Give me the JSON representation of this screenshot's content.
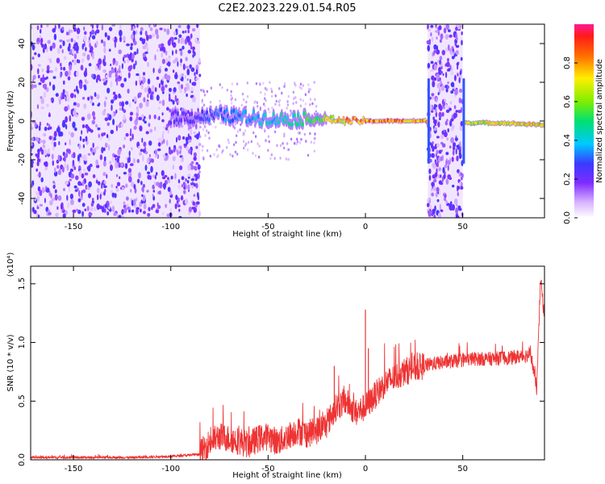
{
  "chart_data": [
    {
      "type": "heatmap",
      "title": "C2E2.2023.229.01.54.R05",
      "xlabel": "Height of straight line (km)",
      "ylabel": "Frequency (Hz)",
      "xlim": [
        -172,
        92
      ],
      "ylim": [
        -50,
        50
      ],
      "xticks": [
        -150,
        -100,
        -50,
        0,
        50
      ],
      "yticks": [
        -40,
        -20,
        0,
        20,
        40
      ],
      "colorbar": {
        "label": "Normalized spectral amplitude",
        "range": [
          0.0,
          1.0
        ],
        "ticks": [
          0.0,
          0.2,
          0.4,
          0.6,
          0.8
        ],
        "colormap": "rainbow (white-purple-blue-cyan-green-yellow-red-magenta)"
      },
      "ridge": {
        "description": "strong narrowband signal near 0 Hz",
        "points": [
          {
            "x": -90,
            "f": 2,
            "amp": 0.25
          },
          {
            "x": -75,
            "f": 3,
            "amp": 0.35
          },
          {
            "x": -60,
            "f": 2,
            "amp": 0.4
          },
          {
            "x": -45,
            "f": 1,
            "amp": 0.45
          },
          {
            "x": -30,
            "f": 1,
            "amp": 0.55
          },
          {
            "x": -20,
            "f": 1,
            "amp": 0.7
          },
          {
            "x": -10,
            "f": 0,
            "amp": 0.85
          },
          {
            "x": 0,
            "f": 0,
            "amp": 0.9
          },
          {
            "x": 15,
            "f": 0,
            "amp": 0.9
          },
          {
            "x": 30,
            "f": 0,
            "amp": 0.85
          },
          {
            "x": 55,
            "f": -1,
            "amp": 0.7
          },
          {
            "x": 70,
            "f": -1,
            "amp": 0.75
          },
          {
            "x": 90,
            "f": -2,
            "amp": 0.8
          }
        ]
      },
      "noise_regions": [
        {
          "x_range": [
            -172,
            -85
          ],
          "amp": 0.15
        },
        {
          "x_range": [
            32,
            50
          ],
          "amp": 0.2
        }
      ]
    },
    {
      "type": "line",
      "xlabel": "Height of straight line (km)",
      "ylabel": "SNR (10 * v/v)",
      "y_multiplier": "(x10⁴)",
      "xlim": [
        -172,
        92
      ],
      "ylim": [
        0.0,
        1.65
      ],
      "xticks": [
        -150,
        -100,
        -50,
        0,
        50
      ],
      "yticks": [
        0.0,
        0.5,
        1.0,
        1.5
      ],
      "color": "#ee3333",
      "series": [
        {
          "x": [
            -172,
            -150,
            -120,
            -100,
            -90,
            -85,
            -80,
            -75,
            -70,
            -65,
            -60,
            -55,
            -50,
            -45,
            -40,
            -35,
            -30,
            -25,
            -20,
            -15,
            -10,
            -5,
            0,
            5,
            10,
            15,
            20,
            25,
            30,
            35,
            40,
            45,
            50,
            55,
            60,
            65,
            70,
            75,
            80,
            85,
            88,
            90,
            92
          ],
          "y": [
            0.02,
            0.02,
            0.02,
            0.03,
            0.04,
            0.05,
            0.15,
            0.2,
            0.18,
            0.16,
            0.13,
            0.18,
            0.2,
            0.15,
            0.2,
            0.25,
            0.22,
            0.25,
            0.3,
            0.45,
            0.5,
            0.4,
            0.45,
            0.55,
            0.65,
            0.7,
            0.75,
            0.78,
            0.8,
            0.82,
            0.83,
            0.84,
            0.85,
            0.86,
            0.86,
            0.86,
            0.87,
            0.87,
            0.88,
            0.9,
            0.6,
            1.55,
            1.2
          ]
        }
      ],
      "spikes": [
        {
          "x": 0,
          "y": 1.28
        },
        {
          "x": 1.5,
          "y": 0.95
        },
        {
          "x": -16,
          "y": 0.8
        }
      ]
    }
  ]
}
